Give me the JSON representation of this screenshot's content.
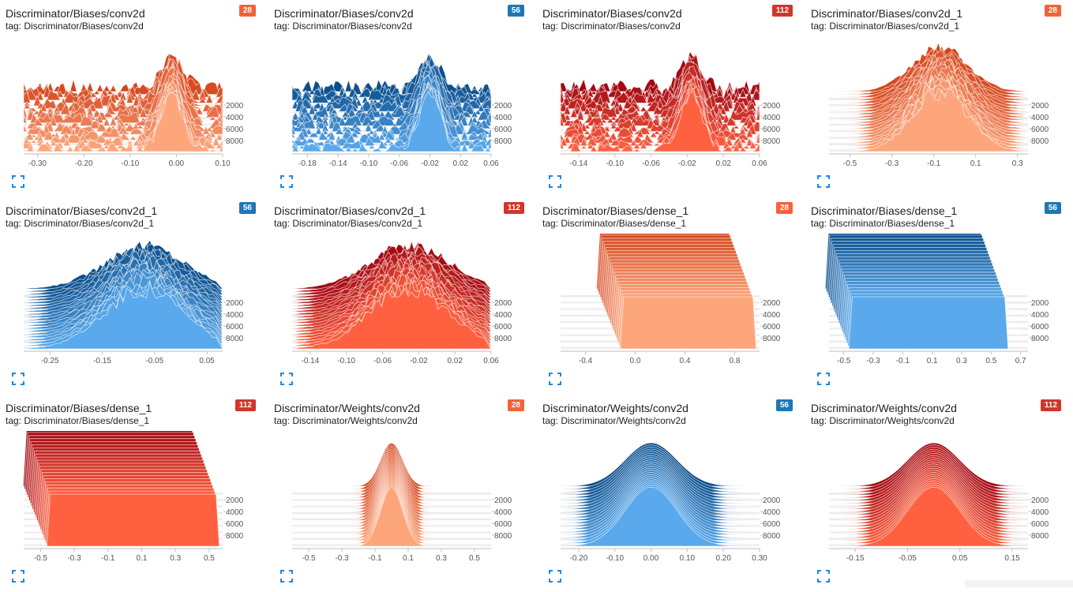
{
  "colors": {
    "size28": {
      "badge": "#f4623a",
      "front": "#fda67c",
      "back": "#d5461e"
    },
    "size56": {
      "badge": "#1f77b4",
      "front": "#5aa9ec",
      "back": "#0b4e8c"
    },
    "size112": {
      "badge": "#d1362a",
      "front": "#ff6140",
      "back": "#a30812"
    }
  },
  "y_ticks": [
    "2000",
    "4000",
    "6000",
    "8000"
  ],
  "cards": [
    {
      "title": "Discriminator/Biases/conv2d",
      "tag": "tag: Discriminator/Biases/conv2d",
      "badge": "28",
      "palette": "size28",
      "shape": "bias_sparse",
      "chart_data": {
        "type": "histogram",
        "x_ticks": [
          "-0.30",
          "-0.20",
          "-0.10",
          "0.00",
          "0.10"
        ],
        "x_range": [
          -0.33,
          0.1
        ],
        "peak": -0.01
      }
    },
    {
      "title": "Discriminator/Biases/conv2d",
      "tag": "tag: Discriminator/Biases/conv2d",
      "badge": "56",
      "palette": "size56",
      "shape": "bias_sparse",
      "chart_data": {
        "type": "histogram",
        "x_ticks": [
          "-0.18",
          "-0.14",
          "-0.10",
          "-0.06",
          "-0.02",
          "0.02",
          "0.06"
        ],
        "x_range": [
          -0.2,
          0.06
        ],
        "peak": -0.02
      }
    },
    {
      "title": "Discriminator/Biases/conv2d",
      "tag": "tag: Discriminator/Biases/conv2d",
      "badge": "112",
      "palette": "size112",
      "shape": "bias_sparse",
      "chart_data": {
        "type": "histogram",
        "x_ticks": [
          "-0.14",
          "-0.10",
          "-0.06",
          "-0.02",
          "0.02",
          "0.06"
        ],
        "x_range": [
          -0.16,
          0.06
        ],
        "peak": -0.015
      }
    },
    {
      "title": "Discriminator/Biases/conv2d_1",
      "tag": "tag: Discriminator/Biases/conv2d_1",
      "badge": "28",
      "palette": "size28",
      "shape": "peak",
      "chart_data": {
        "type": "histogram",
        "x_ticks": [
          "-0.5",
          "-0.3",
          "-0.1",
          "0.1",
          "0.3"
        ],
        "x_range": [
          -0.6,
          0.35
        ],
        "peak": -0.07
      }
    },
    {
      "title": "Discriminator/Biases/conv2d_1",
      "tag": "tag: Discriminator/Biases/conv2d_1",
      "badge": "56",
      "palette": "size56",
      "shape": "bump",
      "chart_data": {
        "type": "histogram",
        "x_ticks": [
          "-0.25",
          "-0.15",
          "-0.05",
          "0.05"
        ],
        "x_range": [
          -0.3,
          0.08
        ],
        "peak": -0.07
      }
    },
    {
      "title": "Discriminator/Biases/conv2d_1",
      "tag": "tag: Discriminator/Biases/conv2d_1",
      "badge": "112",
      "palette": "size112",
      "shape": "bump",
      "chart_data": {
        "type": "histogram",
        "x_ticks": [
          "-0.14",
          "-0.10",
          "-0.06",
          "-0.02",
          "0.02",
          "0.06"
        ],
        "x_range": [
          -0.16,
          0.06
        ],
        "peak": -0.03
      }
    },
    {
      "title": "Discriminator/Biases/dense_1",
      "tag": "tag: Discriminator/Biases/dense_1",
      "badge": "28",
      "palette": "size28",
      "shape": "block",
      "chart_data": {
        "type": "histogram",
        "x_ticks": [
          "-0.4",
          "0.0",
          "0.4",
          "0.8"
        ],
        "x_range": [
          -0.6,
          1.0
        ],
        "block": [
          -0.1,
          0.95
        ]
      }
    },
    {
      "title": "Discriminator/Biases/dense_1",
      "tag": "tag: Discriminator/Biases/dense_1",
      "badge": "56",
      "palette": "size56",
      "shape": "block",
      "chart_data": {
        "type": "histogram",
        "x_ticks": [
          "-0.5",
          "-0.3",
          "-0.1",
          "0.1",
          "0.3",
          "0.5",
          "0.7"
        ],
        "x_range": [
          -0.6,
          0.75
        ],
        "block": [
          -0.45,
          0.6
        ]
      }
    },
    {
      "title": "Discriminator/Biases/dense_1",
      "tag": "tag: Discriminator/Biases/dense_1",
      "badge": "112",
      "palette": "size112",
      "shape": "block",
      "chart_data": {
        "type": "histogram",
        "x_ticks": [
          "-0.5",
          "-0.3",
          "-0.1",
          "0.1",
          "0.3",
          "0.5"
        ],
        "x_range": [
          -0.6,
          0.58
        ],
        "block": [
          -0.45,
          0.55
        ]
      }
    },
    {
      "title": "Discriminator/Weights/conv2d",
      "tag": "tag: Discriminator/Weights/conv2d",
      "badge": "28",
      "palette": "size28",
      "shape": "narrow",
      "chart_data": {
        "type": "histogram",
        "x_ticks": [
          "-0.5",
          "-0.3",
          "-0.1",
          "0.1",
          "0.3",
          "0.5"
        ],
        "x_range": [
          -0.6,
          0.6
        ],
        "peak": 0.0
      }
    },
    {
      "title": "Discriminator/Weights/conv2d",
      "tag": "tag: Discriminator/Weights/conv2d",
      "badge": "56",
      "palette": "size56",
      "shape": "gauss",
      "chart_data": {
        "type": "histogram",
        "x_ticks": [
          "-0.20",
          "-0.10",
          "0.00",
          "0.10",
          "0.20",
          "0.30"
        ],
        "x_range": [
          -0.25,
          0.3
        ],
        "peak": 0.0
      }
    },
    {
      "title": "Discriminator/Weights/conv2d",
      "tag": "tag: Discriminator/Weights/conv2d",
      "badge": "112",
      "palette": "size112",
      "shape": "gauss",
      "chart_data": {
        "type": "histogram",
        "x_ticks": [
          "-0.15",
          "-0.05",
          "0.05",
          "0.15"
        ],
        "x_range": [
          -0.2,
          0.18
        ],
        "peak": 0.0
      }
    }
  ]
}
